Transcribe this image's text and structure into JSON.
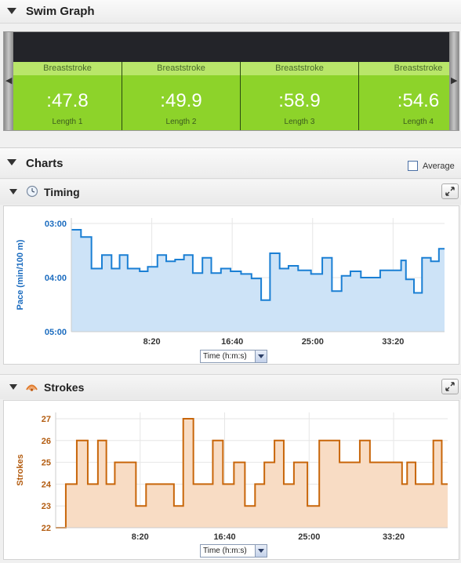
{
  "swim_graph": {
    "title": "Swim Graph",
    "laps": [
      {
        "stroke": "Breaststroke",
        "time": ":47.8",
        "length": "Length 1"
      },
      {
        "stroke": "Breaststroke",
        "time": ":49.9",
        "length": "Length 2"
      },
      {
        "stroke": "Breaststroke",
        "time": ":58.9",
        "length": "Length 3"
      },
      {
        "stroke": "Breaststroke",
        "time": ":54.6",
        "length": "Length 4"
      }
    ]
  },
  "charts": {
    "title": "Charts",
    "average_label": "Average",
    "timing": {
      "title": "Timing",
      "axis_select": "Time (h:m:s)"
    },
    "strokes": {
      "title": "Strokes",
      "axis_select": "Time (h:m:s)"
    }
  },
  "colors": {
    "pace_line": "#1a7fd4",
    "pace_fill": "#cde3f7",
    "pace_axis": "#1a6bbf",
    "strokes_line": "#c8660a",
    "strokes_fill": "#f8dcc4",
    "strokes_axis": "#b35c10",
    "lap_green": "#8dd32a"
  },
  "chart_data": [
    {
      "type": "area",
      "name": "timing",
      "ylabel": "Pace (min/100 m)",
      "y_ticks": [
        "03:00",
        "04:00",
        "05:00"
      ],
      "x_ticks": [
        "8:20",
        "16:40",
        "25:00",
        "33:20"
      ],
      "ylim_seconds": [
        180,
        300
      ],
      "y_inverted": true,
      "xlim_seconds": [
        0,
        2320
      ],
      "grid": true,
      "x": [
        0,
        60,
        125,
        190,
        250,
        300,
        350,
        425,
        475,
        535,
        590,
        645,
        700,
        755,
        815,
        870,
        930,
        990,
        1055,
        1120,
        1180,
        1235,
        1295,
        1350,
        1410,
        1490,
        1560,
        1620,
        1680,
        1735,
        1800,
        1860,
        1920,
        2050,
        2080,
        2130,
        2180,
        2235,
        2285
      ],
      "pace_seconds": [
        187,
        195,
        230,
        215,
        230,
        215,
        230,
        233,
        228,
        215,
        222,
        220,
        215,
        235,
        218,
        235,
        230,
        233,
        236,
        241,
        265,
        213,
        230,
        227,
        232,
        236,
        218,
        255,
        238,
        233,
        240,
        240,
        232,
        221,
        242,
        257,
        218,
        222,
        208
      ]
    },
    {
      "type": "area",
      "name": "strokes",
      "ylabel": "Strokes",
      "y_ticks": [
        "27",
        "26",
        "25",
        "24",
        "23",
        "22"
      ],
      "x_ticks": [
        "8:20",
        "16:40",
        "25:00",
        "33:20"
      ],
      "ylim": [
        22,
        27
      ],
      "xlim_seconds": [
        0,
        2320
      ],
      "grid": true,
      "x": [
        0,
        60,
        125,
        190,
        250,
        300,
        350,
        425,
        475,
        535,
        590,
        645,
        700,
        755,
        815,
        870,
        930,
        990,
        1055,
        1120,
        1180,
        1235,
        1295,
        1350,
        1410,
        1490,
        1560,
        1620,
        1680,
        1735,
        1800,
        1860,
        1920,
        2050,
        2080,
        2130,
        2180,
        2235,
        2285
      ],
      "strokes": [
        22,
        24,
        26,
        24,
        26,
        24,
        25,
        25,
        23,
        24,
        24,
        24,
        23,
        27,
        24,
        24,
        26,
        24,
        25,
        23,
        24,
        25,
        26,
        24,
        25,
        23,
        26,
        26,
        25,
        25,
        26,
        25,
        25,
        24,
        25,
        24,
        24,
        26,
        24
      ]
    }
  ]
}
